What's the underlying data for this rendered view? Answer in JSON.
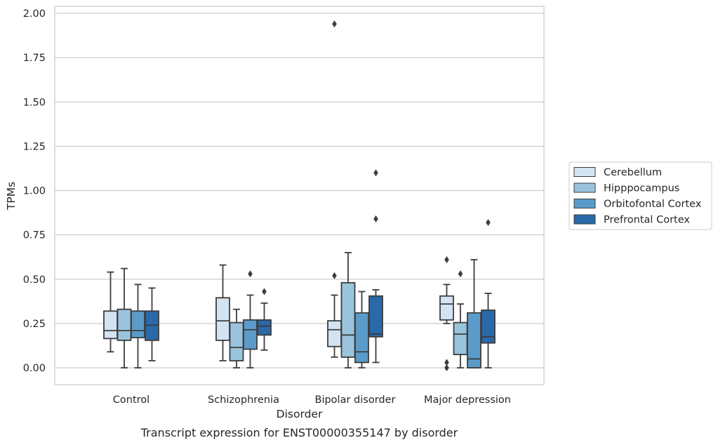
{
  "chart_data": {
    "type": "box",
    "caption": "Transcript expression for ENST00000355147 by disorder",
    "xlabel": "Disorder",
    "ylabel": "TPMs",
    "ylim": [
      -0.1,
      2.04
    ],
    "yticks": [
      "0.00",
      "0.25",
      "0.50",
      "0.75",
      "1.00",
      "1.25",
      "1.50",
      "1.75",
      "2.00"
    ],
    "ytick_values": [
      0,
      0.25,
      0.5,
      0.75,
      1.0,
      1.25,
      1.5,
      1.75,
      2.0
    ],
    "grid": "horizontal",
    "legend_position": "right",
    "categories": [
      "Control",
      "Schizophrenia",
      "Bipolar disorder",
      "Major depression"
    ],
    "series": [
      {
        "name": "Cerebellum",
        "color": "#d3e3f2",
        "boxes": [
          {
            "whislo": 0.09,
            "q1": 0.165,
            "median": 0.21,
            "q3": 0.32,
            "whishi": 0.54,
            "fliers": []
          },
          {
            "whislo": 0.04,
            "q1": 0.155,
            "median": 0.265,
            "q3": 0.395,
            "whishi": 0.58,
            "fliers": []
          },
          {
            "whislo": 0.06,
            "q1": 0.12,
            "median": 0.215,
            "q3": 0.265,
            "whishi": 0.41,
            "fliers": [
              0.52,
              1.94
            ]
          },
          {
            "whislo": 0.25,
            "q1": 0.27,
            "median": 0.36,
            "q3": 0.405,
            "whishi": 0.47,
            "fliers": [
              0.61,
              0.03,
              0.0
            ]
          }
        ]
      },
      {
        "name": "Hipppocampus",
        "color": "#9ac4de",
        "boxes": [
          {
            "whislo": 0.0,
            "q1": 0.155,
            "median": 0.21,
            "q3": 0.33,
            "whishi": 0.56,
            "fliers": []
          },
          {
            "whislo": 0.0,
            "q1": 0.04,
            "median": 0.115,
            "q3": 0.255,
            "whishi": 0.33,
            "fliers": []
          },
          {
            "whislo": 0.0,
            "q1": 0.06,
            "median": 0.185,
            "q3": 0.48,
            "whishi": 0.65,
            "fliers": []
          },
          {
            "whislo": 0.0,
            "q1": 0.075,
            "median": 0.19,
            "q3": 0.255,
            "whishi": 0.36,
            "fliers": [
              0.53
            ]
          }
        ]
      },
      {
        "name": "Orbitofontal Cortex",
        "color": "#5b9bc9",
        "boxes": [
          {
            "whislo": 0.0,
            "q1": 0.17,
            "median": 0.21,
            "q3": 0.32,
            "whishi": 0.47,
            "fliers": []
          },
          {
            "whislo": 0.0,
            "q1": 0.105,
            "median": 0.215,
            "q3": 0.27,
            "whishi": 0.41,
            "fliers": [
              0.53
            ]
          },
          {
            "whislo": 0.0,
            "q1": 0.03,
            "median": 0.09,
            "q3": 0.31,
            "whishi": 0.43,
            "fliers": []
          },
          {
            "whislo": 0.0,
            "q1": 0.0,
            "median": 0.05,
            "q3": 0.31,
            "whishi": 0.61,
            "fliers": []
          }
        ]
      },
      {
        "name": "Prefrontal Cortex",
        "color": "#2a69a9",
        "boxes": [
          {
            "whislo": 0.04,
            "q1": 0.155,
            "median": 0.24,
            "q3": 0.32,
            "whishi": 0.45,
            "fliers": []
          },
          {
            "whislo": 0.1,
            "q1": 0.185,
            "median": 0.235,
            "q3": 0.27,
            "whishi": 0.365,
            "fliers": [
              0.43
            ]
          },
          {
            "whislo": 0.03,
            "q1": 0.175,
            "median": 0.19,
            "q3": 0.405,
            "whishi": 0.44,
            "fliers": [
              0.84,
              1.1
            ]
          },
          {
            "whislo": 0.0,
            "q1": 0.14,
            "median": 0.175,
            "q3": 0.325,
            "whishi": 0.42,
            "fliers": [
              0.82
            ]
          }
        ]
      }
    ]
  }
}
